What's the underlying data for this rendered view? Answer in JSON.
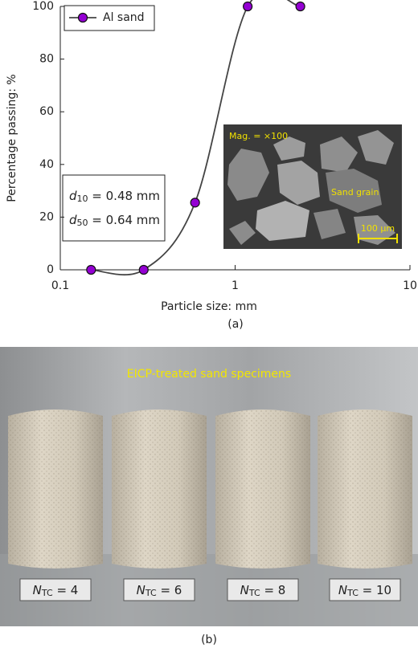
{
  "chart_data": {
    "type": "line",
    "x_label": "Particle size: mm",
    "y_label": "Percentage passing: %",
    "x": [
      0.15,
      0.3,
      0.59,
      1.18,
      2.36
    ],
    "series": [
      {
        "name": "Al sand",
        "color": "#9400d3",
        "values": [
          0,
          0,
          25.5,
          100,
          100
        ]
      }
    ],
    "xlim": [
      0.1,
      10
    ],
    "xticks": [
      0.1,
      1,
      10
    ],
    "xscale": "log",
    "ylim": [
      0,
      100
    ],
    "yticks": [
      0,
      20,
      40,
      60,
      80,
      100
    ],
    "legend": "upper left",
    "annotations": [
      {
        "symbol": "d",
        "subscript": "10",
        "text": " = 0.48 mm"
      },
      {
        "symbol": "d",
        "subscript": "50",
        "text": " = 0.64 mm"
      }
    ],
    "inset": {
      "magnification": "Mag. = ×100",
      "grain": "Sand grain",
      "scale": "100 μm"
    },
    "panel": "(a)"
  },
  "photo": {
    "title": "EICP-treated sand specimens",
    "labels": [
      {
        "symbol": "N",
        "subscript": "TC",
        "text": " = 4"
      },
      {
        "symbol": "N",
        "subscript": "TC",
        "text": " = 6"
      },
      {
        "symbol": "N",
        "subscript": "TC",
        "text": " = 8"
      },
      {
        "symbol": "N",
        "subscript": "TC",
        "text": " = 10"
      }
    ],
    "panel": "(b)"
  }
}
